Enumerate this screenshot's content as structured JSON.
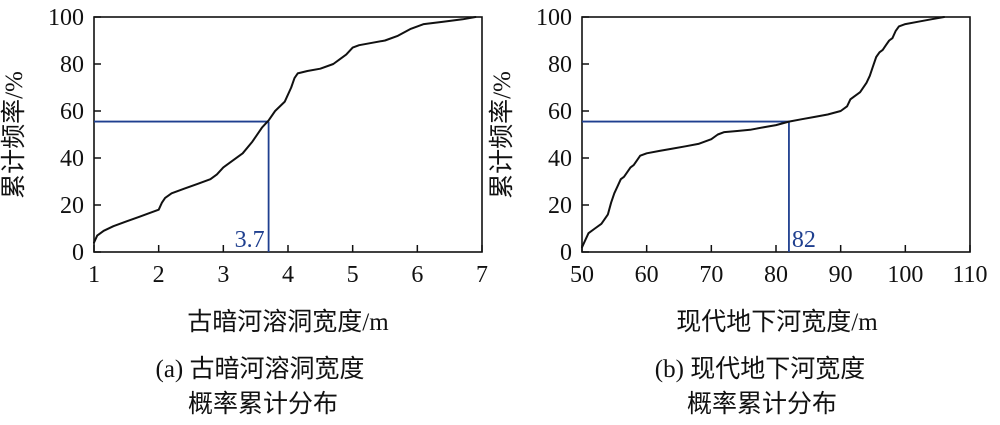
{
  "chart_data": [
    {
      "type": "line",
      "caption_line1": "(a) 古暗河溶洞宽度",
      "caption_line2": "概率累计分布",
      "xlabel": "古暗河溶洞宽度/m",
      "ylabel": "累计频率/%",
      "xlim": [
        1,
        7
      ],
      "ylim": [
        0,
        100
      ],
      "xticks": [
        1,
        2,
        3,
        4,
        5,
        6,
        7
      ],
      "yticks": [
        0,
        20,
        40,
        60,
        80,
        100
      ],
      "series": [
        {
          "x": [
            1.0,
            1.05,
            1.15,
            1.3,
            1.5,
            1.7,
            1.9,
            2.0,
            2.05,
            2.1,
            2.2,
            2.4,
            2.6,
            2.8,
            2.9,
            3.0,
            3.1,
            3.3,
            3.45,
            3.6,
            3.7,
            3.8,
            3.95,
            4.05,
            4.1,
            4.15,
            4.3,
            4.5,
            4.7,
            4.8,
            4.9,
            5.0,
            5.1,
            5.3,
            5.5,
            5.7,
            5.9,
            6.1,
            6.4,
            6.7,
            6.9
          ],
          "y": [
            4,
            7,
            9,
            11,
            13,
            15,
            17,
            18,
            21,
            23,
            25,
            27,
            29,
            31,
            33,
            36,
            38,
            42,
            47,
            53,
            56,
            60,
            64,
            70,
            74,
            76,
            77,
            78,
            80,
            82,
            84,
            87,
            88,
            89,
            90,
            92,
            95,
            97,
            98,
            99,
            100
          ]
        }
      ],
      "reference": {
        "x": 3.7,
        "y": 55.5,
        "label": "3.7",
        "color": "#1f3f8f"
      }
    },
    {
      "type": "line",
      "caption_line1": "(b) 现代地下河宽度",
      "caption_line2": "概率累计分布",
      "xlabel": "现代地下河宽度/m",
      "ylabel": "累计频率/%",
      "xlim": [
        50,
        110
      ],
      "ylim": [
        0,
        100
      ],
      "xticks": [
        50,
        60,
        70,
        80,
        90,
        100,
        110
      ],
      "yticks": [
        0,
        20,
        40,
        60,
        80,
        100
      ],
      "series": [
        {
          "x": [
            50,
            50.5,
            51,
            52,
            53,
            54,
            54.5,
            55,
            55.5,
            56,
            56.5,
            57,
            57.5,
            58,
            58.5,
            59,
            60,
            62,
            64,
            66,
            68,
            70,
            71,
            72,
            74,
            76,
            78,
            80,
            82,
            84,
            86,
            88,
            90,
            91,
            91.5,
            92,
            93,
            94,
            94.5,
            95,
            95.5,
            96,
            96.5,
            97,
            97.5,
            98,
            98.5,
            99,
            100,
            102,
            104,
            106
          ],
          "y": [
            2,
            5,
            8,
            10,
            12,
            16,
            21,
            25,
            28,
            31,
            32,
            34,
            36,
            37,
            39,
            41,
            42,
            43,
            44,
            45,
            46,
            48,
            50,
            51,
            51.5,
            52,
            53,
            54,
            55.5,
            56.5,
            57.5,
            58.5,
            60,
            62,
            65,
            66,
            68,
            72,
            75,
            79,
            83,
            85,
            86,
            88,
            90,
            91,
            94,
            96,
            97,
            98,
            99,
            100
          ]
        }
      ],
      "reference": {
        "x": 82,
        "y": 55.5,
        "label": "82",
        "color": "#1f3f8f"
      }
    }
  ]
}
